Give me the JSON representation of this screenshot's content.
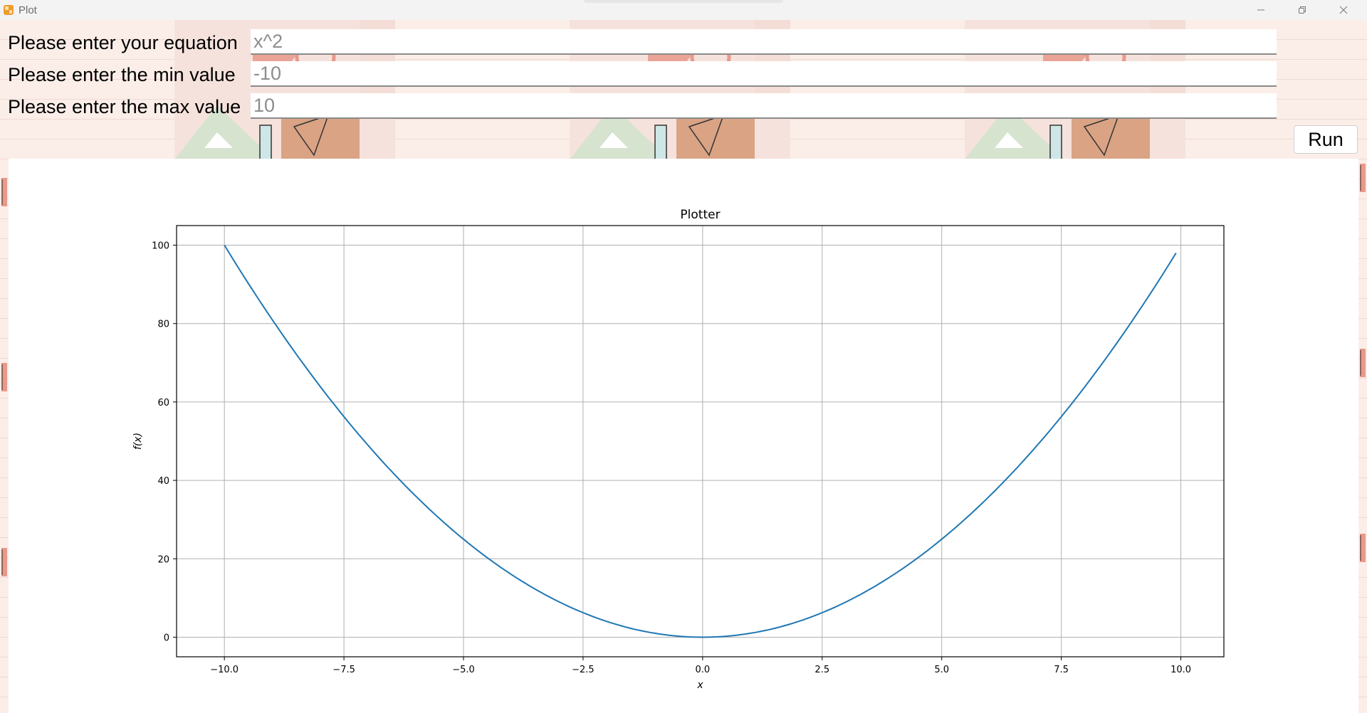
{
  "window": {
    "title": "Plot",
    "app_icon": "plot-app-icon",
    "controls": [
      "minimize-icon",
      "restore-icon",
      "close-icon"
    ]
  },
  "form": {
    "equation": {
      "label": "Please enter your equation",
      "placeholder": "x^2"
    },
    "min": {
      "label": "Please enter the min value",
      "placeholder": "-10"
    },
    "max": {
      "label": "Please enter the max value",
      "placeholder": "10"
    },
    "run_label": "Run"
  },
  "colors": {
    "series": "#1f77b4",
    "grid": "#b0b0b0",
    "background": "#fbeee9"
  },
  "chart_data": {
    "type": "line",
    "title": "Plotter",
    "xlabel": "x",
    "ylabel": "f(x)",
    "xlim": [
      -11.0,
      10.9
    ],
    "ylim": [
      -5,
      105
    ],
    "grid": true,
    "xticks": [
      -10.0,
      -7.5,
      -5.0,
      -2.5,
      0.0,
      2.5,
      5.0,
      7.5,
      10.0
    ],
    "xtick_labels": [
      "−10.0",
      "−7.5",
      "−5.0",
      "−2.5",
      "0.0",
      "2.5",
      "5.0",
      "7.5",
      "10.0"
    ],
    "yticks": [
      0,
      20,
      40,
      60,
      80,
      100
    ],
    "ytick_labels": [
      "0",
      "20",
      "40",
      "60",
      "80",
      "100"
    ],
    "series": [
      {
        "x": [
          -10,
          -9,
          -8,
          -7,
          -6,
          -5,
          -4,
          -3,
          -2,
          -1,
          0,
          1,
          2,
          3,
          4,
          5,
          6,
          7,
          8,
          9,
          9.9
        ],
        "y": [
          100,
          81,
          64,
          49,
          36,
          25,
          16,
          9,
          4,
          1,
          0,
          1,
          4,
          9,
          16,
          25,
          36,
          49,
          64,
          81,
          98.01
        ]
      }
    ]
  }
}
